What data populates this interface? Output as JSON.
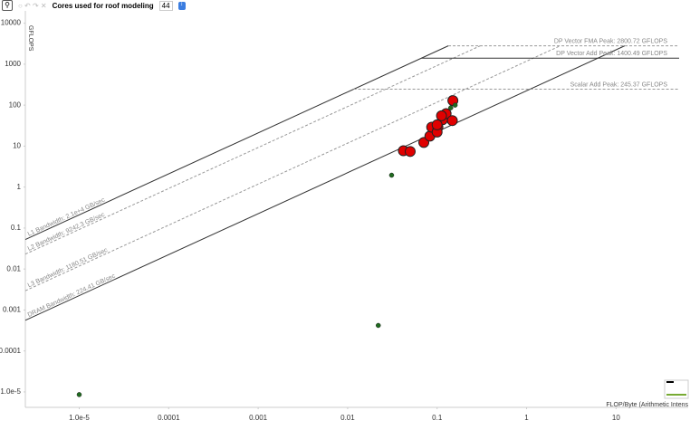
{
  "toolbar": {
    "label": "Cores used for roof modeling",
    "cores": 44
  },
  "chart_data": {
    "type": "roofline",
    "y_label": "GFLOPS",
    "x_label": "FLOP/Byte (Arithmetic Intens",
    "log_x": true,
    "log_y": true,
    "xlim": [
      2.5e-06,
      64
    ],
    "ylim": [
      4.2e-06,
      20000
    ],
    "xticks": [
      {
        "value": 1e-05,
        "label": "1.0e-5"
      },
      0.0001,
      0.001,
      0.01,
      0.1,
      1,
      10
    ],
    "yticks": [
      {
        "value": 1e-05,
        "label": "1.0e-5"
      },
      0.0001,
      0.001,
      0.01,
      0.1,
      1,
      10,
      100,
      1000,
      10000
    ],
    "compute_roofs": [
      {
        "name": "DP Vector FMA Peak: 2800.72 GFLOPS",
        "value": 2800.72,
        "style": "dashed"
      },
      {
        "name": "DP Vector Add Peak: 1400.49 GFLOPS",
        "value": 1400.49,
        "style": "solid"
      },
      {
        "name": "Scalar Add Peak: 245.37 GFLOPS",
        "value": 245.37,
        "style": "dashed"
      }
    ],
    "memory_roofs": [
      {
        "name": "L1 Bandwidth: 2.1e+4 GB/sec",
        "value": 21000,
        "style": "solid"
      },
      {
        "name": "L2 Bandwidth: 9242.3 GB/sec",
        "value": 9242.3,
        "style": "dashed"
      },
      {
        "name": "L3 Bandwidth: 1180.51 GB/sec",
        "value": 1180.51,
        "style": "dashed"
      },
      {
        "name": "DRAM Bandwidth: 224.41 GB/sec",
        "value": 224.41,
        "style": "solid"
      }
    ],
    "series": [
      {
        "color": "#e00000",
        "size": "large",
        "x": [
          0.15,
          0.042,
          0.05,
          0.071,
          0.083,
          0.087,
          0.102,
          0.115,
          0.1,
          0.126,
          0.112,
          0.148,
          0.1
        ],
        "values": [
          129,
          7.7,
          7.4,
          12.3,
          17.5,
          29,
          29,
          44,
          22,
          62,
          55,
          42,
          33
        ]
      },
      {
        "color": "#1f6b1f",
        "size": "small",
        "x": [
          1e-05,
          0.022,
          0.031,
          0.142,
          0.159
        ],
        "values": [
          8.6e-06,
          0.00042,
          1.95,
          86,
          100
        ]
      }
    ]
  }
}
